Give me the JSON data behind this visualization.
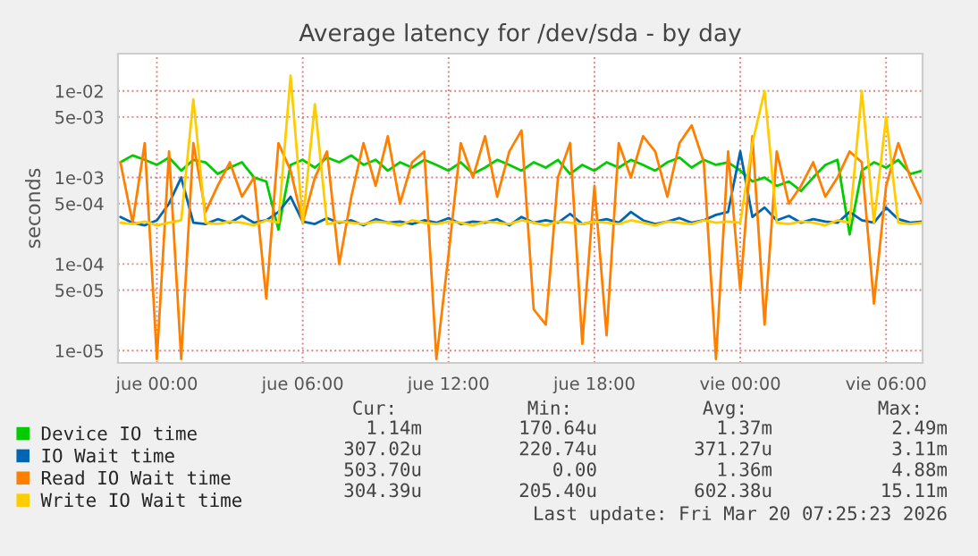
{
  "chart_data": {
    "type": "line",
    "title": "Average latency for /dev/sda - by day",
    "ylabel": "seconds",
    "log": "y",
    "grid": true,
    "legend": "bottom",
    "xlim": [
      "2026-03-18T22:24",
      "2026-03-20T07:30"
    ],
    "xticks": [
      {
        "value": "2026-03-19T00:00",
        "label": "jue 00:00"
      },
      {
        "value": "2026-03-19T06:00",
        "label": "jue 06:00"
      },
      {
        "value": "2026-03-19T12:00",
        "label": "jue 12:00"
      },
      {
        "value": "2026-03-19T18:00",
        "label": "jue 18:00"
      },
      {
        "value": "2026-03-20T00:00",
        "label": "vie 00:00"
      },
      {
        "value": "2026-03-20T06:00",
        "label": "vie 06:00"
      }
    ],
    "ylim": [
      7.2e-06,
      0.027
    ],
    "yticks": [
      {
        "value": 1e-05,
        "label": "1e-05"
      },
      {
        "value": 5e-05,
        "label": "5e-05"
      },
      {
        "value": 0.0001,
        "label": "1e-04"
      },
      {
        "value": 0.0005,
        "label": "5e-04"
      },
      {
        "value": 0.001,
        "label": "1e-03"
      },
      {
        "value": 0.005,
        "label": "5e-03"
      },
      {
        "value": 0.01,
        "label": "1e-02"
      }
    ],
    "x": [
      "2026-03-18T22:30",
      "2026-03-18T23:00",
      "2026-03-18T23:30",
      "2026-03-19T00:00",
      "2026-03-19T00:30",
      "2026-03-19T01:00",
      "2026-03-19T01:30",
      "2026-03-19T02:00",
      "2026-03-19T02:30",
      "2026-03-19T03:00",
      "2026-03-19T03:30",
      "2026-03-19T04:00",
      "2026-03-19T04:30",
      "2026-03-19T05:00",
      "2026-03-19T05:30",
      "2026-03-19T06:00",
      "2026-03-19T06:30",
      "2026-03-19T07:00",
      "2026-03-19T07:30",
      "2026-03-19T08:00",
      "2026-03-19T08:30",
      "2026-03-19T09:00",
      "2026-03-19T09:30",
      "2026-03-19T10:00",
      "2026-03-19T10:30",
      "2026-03-19T11:00",
      "2026-03-19T11:30",
      "2026-03-19T12:00",
      "2026-03-19T12:30",
      "2026-03-19T13:00",
      "2026-03-19T13:30",
      "2026-03-19T14:00",
      "2026-03-19T14:30",
      "2026-03-19T15:00",
      "2026-03-19T15:30",
      "2026-03-19T16:00",
      "2026-03-19T16:30",
      "2026-03-19T17:00",
      "2026-03-19T17:30",
      "2026-03-19T18:00",
      "2026-03-19T18:30",
      "2026-03-19T19:00",
      "2026-03-19T19:30",
      "2026-03-19T20:00",
      "2026-03-19T20:30",
      "2026-03-19T21:00",
      "2026-03-19T21:30",
      "2026-03-19T22:00",
      "2026-03-19T22:30",
      "2026-03-19T23:00",
      "2026-03-19T23:30",
      "2026-03-20T00:00",
      "2026-03-20T00:30",
      "2026-03-20T01:00",
      "2026-03-20T01:30",
      "2026-03-20T02:00",
      "2026-03-20T02:30",
      "2026-03-20T03:00",
      "2026-03-20T03:30",
      "2026-03-20T04:00",
      "2026-03-20T04:30",
      "2026-03-20T05:00",
      "2026-03-20T05:30",
      "2026-03-20T06:00",
      "2026-03-20T06:30",
      "2026-03-20T07:00",
      "2026-03-20T07:30"
    ],
    "series": [
      {
        "name": "Device IO time",
        "color": "#00cc00",
        "values": [
          0.0015,
          0.0018,
          0.0016,
          0.0014,
          0.0017,
          0.0012,
          0.0016,
          0.0015,
          0.0011,
          0.0013,
          0.0015,
          0.001,
          0.0009,
          0.00025,
          0.0014,
          0.0016,
          0.0013,
          0.0017,
          0.0015,
          0.0018,
          0.0014,
          0.0016,
          0.0012,
          0.0015,
          0.0013,
          0.0016,
          0.0014,
          0.0012,
          0.0015,
          0.0011,
          0.0013,
          0.0016,
          0.0014,
          0.0012,
          0.0015,
          0.0013,
          0.0016,
          0.0011,
          0.0014,
          0.0012,
          0.0015,
          0.0013,
          0.0016,
          0.0014,
          0.0012,
          0.0015,
          0.0017,
          0.0013,
          0.0016,
          0.0014,
          0.0015,
          0.0012,
          0.0009,
          0.001,
          0.0008,
          0.0009,
          0.0007,
          0.001,
          0.0014,
          0.0016,
          0.00022,
          0.0012,
          0.0015,
          0.0013,
          0.0016,
          0.0011,
          0.0012
        ]
      },
      {
        "name": "IO Wait time",
        "color": "#0066b3",
        "values": [
          0.00035,
          0.0003,
          0.00028,
          0.00032,
          0.0005,
          0.001,
          0.0003,
          0.00029,
          0.00033,
          0.0003,
          0.00036,
          0.0003,
          0.00032,
          0.0004,
          0.0006,
          0.00031,
          0.00029,
          0.00034,
          0.0003,
          0.00032,
          0.00028,
          0.00033,
          0.0003,
          0.00031,
          0.00029,
          0.00032,
          0.0003,
          0.00034,
          0.00029,
          0.00031,
          0.0003,
          0.00033,
          0.00028,
          0.00035,
          0.0003,
          0.00032,
          0.0003,
          0.00038,
          0.00029,
          0.00031,
          0.00033,
          0.0003,
          0.0004,
          0.00032,
          0.00029,
          0.00031,
          0.00034,
          0.0003,
          0.00032,
          0.00037,
          0.0004,
          0.002,
          0.00035,
          0.00045,
          0.00032,
          0.00036,
          0.0003,
          0.00033,
          0.00031,
          0.0003,
          0.0004,
          0.00032,
          0.0003,
          0.00045,
          0.00033,
          0.0003,
          0.00031
        ]
      },
      {
        "name": "Read IO Wait time",
        "color": "#ff8000",
        "values": [
          0.0015,
          0.0003,
          0.0025,
          8e-06,
          0.002,
          8e-06,
          0.0025,
          0.0004,
          0.0008,
          0.0015,
          0.0006,
          0.001,
          4e-05,
          0.0025,
          0.0012,
          0.0003,
          0.001,
          0.002,
          0.0001,
          0.0006,
          0.0025,
          0.0008,
          0.003,
          0.0005,
          0.0015,
          0.002,
          8e-06,
          0.00013,
          0.0025,
          0.001,
          0.003,
          0.0006,
          0.002,
          0.0035,
          3e-05,
          2e-05,
          0.001,
          0.0025,
          1.2e-05,
          0.0008,
          1.5e-05,
          0.0025,
          0.001,
          0.003,
          0.002,
          0.0006,
          0.0025,
          0.004,
          0.0015,
          8e-06,
          0.002,
          5e-05,
          0.003,
          2e-05,
          0.002,
          0.0005,
          0.0008,
          0.0015,
          0.0006,
          0.001,
          0.002,
          0.0015,
          3.5e-05,
          0.0008,
          0.0025,
          0.001,
          0.0005
        ]
      },
      {
        "name": "Write IO Wait time",
        "color": "#ffcc00",
        "values": [
          0.0003,
          0.00029,
          0.00031,
          0.00028,
          0.0003,
          0.00032,
          0.008,
          0.0003,
          0.00029,
          0.00031,
          0.0003,
          0.00028,
          0.00032,
          0.0003,
          0.015,
          0.0003,
          0.007,
          0.00029,
          0.00031,
          0.0003,
          0.00029,
          0.00031,
          0.0003,
          0.00028,
          0.00032,
          0.0003,
          0.00029,
          0.00031,
          0.0003,
          0.00028,
          0.00031,
          0.0003,
          0.00029,
          0.00032,
          0.0003,
          0.00028,
          0.00031,
          0.0003,
          0.00029,
          0.00031,
          0.0003,
          0.00029,
          0.00032,
          0.0003,
          0.00028,
          0.00031,
          0.0003,
          0.00029,
          0.00032,
          0.0003,
          0.00031,
          0.0003,
          0.0025,
          0.01,
          0.0003,
          0.00029,
          0.00031,
          0.0003,
          0.00028,
          0.00032,
          0.0003,
          0.01,
          0.0003,
          0.005,
          0.0003,
          0.00029,
          0.0003
        ]
      }
    ],
    "annotations": [
      "Cur:",
      "Min:",
      "Avg:",
      "Max:",
      "1.14m",
      "170.64u",
      "1.37m",
      "2.49m",
      "307.02u",
      "220.74u",
      "371.27u",
      "3.11m",
      "503.70u",
      "0.00",
      "1.36m",
      "4.88m",
      "304.39u",
      "205.40u",
      "602.38u",
      "15.11m",
      "Last update: Fri Mar 20 07:25:23 2026"
    ]
  }
}
